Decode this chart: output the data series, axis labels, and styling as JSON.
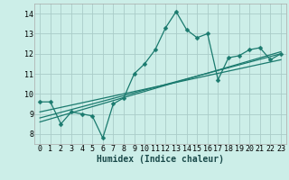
{
  "xlabel": "Humidex (Indice chaleur)",
  "bg_color": "#cceee8",
  "grid_color": "#aaccc8",
  "line_color": "#1a7a6e",
  "xlim": [
    -0.5,
    23.5
  ],
  "ylim": [
    7.5,
    14.5
  ],
  "xticks": [
    0,
    1,
    2,
    3,
    4,
    5,
    6,
    7,
    8,
    9,
    10,
    11,
    12,
    13,
    14,
    15,
    16,
    17,
    18,
    19,
    20,
    21,
    22,
    23
  ],
  "yticks": [
    8,
    9,
    10,
    11,
    12,
    13,
    14
  ],
  "main_line_x": [
    0,
    1,
    2,
    3,
    4,
    5,
    6,
    7,
    8,
    9,
    10,
    11,
    12,
    13,
    14,
    15,
    16,
    17,
    18,
    19,
    20,
    21,
    22,
    23
  ],
  "main_line_y": [
    9.6,
    9.6,
    8.5,
    9.1,
    9.0,
    8.9,
    7.8,
    9.5,
    9.8,
    11.0,
    11.5,
    12.2,
    13.3,
    14.1,
    13.2,
    12.8,
    13.0,
    10.7,
    11.8,
    11.9,
    12.2,
    12.3,
    11.7,
    12.0
  ],
  "trend1_x": [
    0,
    23
  ],
  "trend1_y": [
    8.8,
    12.0
  ],
  "trend2_x": [
    0,
    23
  ],
  "trend2_y": [
    9.1,
    11.7
  ],
  "trend3_x": [
    0,
    23
  ],
  "trend3_y": [
    8.6,
    12.1
  ],
  "marker": "D",
  "markersize": 2.5,
  "xlabel_fontsize": 7,
  "tick_fontsize": 6
}
